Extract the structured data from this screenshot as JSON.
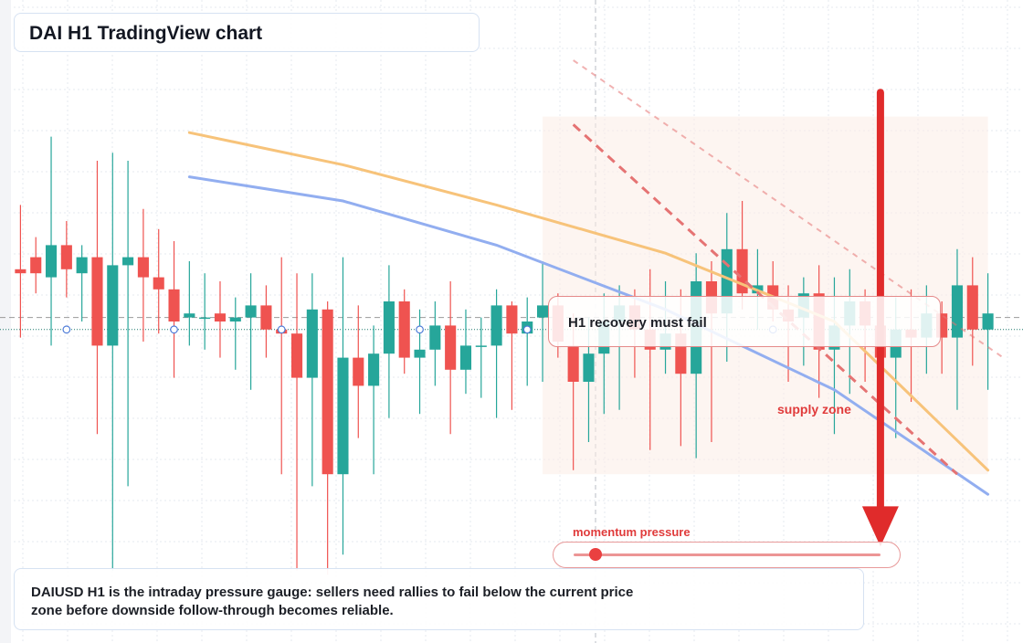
{
  "header": {
    "title": "DAI H1 TradingView chart"
  },
  "annotations": {
    "note": "H1 recovery must fail",
    "zone_label": "supply zone",
    "gauge_label": "momentum pressure",
    "gauge_value": 0.07,
    "caption": "DAIUSD H1 is the intraday pressure gauge: sellers need rallies to fail below the current price zone before downside follow-through becomes reliable."
  },
  "colors": {
    "up": "#26a69a",
    "down": "#ef5350",
    "ma_fast": "#f7c37a",
    "ma_slow": "#92aef0",
    "trendline": "#e57373",
    "arrow": "#e02b2b",
    "grid": "#e6e9ef"
  },
  "chart_data": {
    "type": "candlestick",
    "symbol": "DAIUSD",
    "timeframe": "H1",
    "ylim": [
      0.9992,
      1.0008
    ],
    "price_line": 0.99998,
    "price_line_upper": 1.00001,
    "candles": [
      {
        "o": 1.00013,
        "h": 1.00029,
        "l": 0.99996,
        "c": 1.00012
      },
      {
        "o": 1.00016,
        "h": 1.00021,
        "l": 1.00007,
        "c": 1.00012
      },
      {
        "o": 1.00011,
        "h": 1.00046,
        "l": 0.99994,
        "c": 1.00019
      },
      {
        "o": 1.00019,
        "h": 1.00025,
        "l": 1.00006,
        "c": 1.00013
      },
      {
        "o": 1.00012,
        "h": 1.00019,
        "l": 1.0,
        "c": 1.00016
      },
      {
        "o": 1.00016,
        "h": 1.0004,
        "l": 0.99972,
        "c": 0.99994
      },
      {
        "o": 0.99994,
        "h": 1.00042,
        "l": 0.99938,
        "c": 1.00014
      },
      {
        "o": 1.00014,
        "h": 1.0004,
        "l": 0.99959,
        "c": 1.00016
      },
      {
        "o": 1.00016,
        "h": 1.00028,
        "l": 0.99995,
        "c": 1.00011
      },
      {
        "o": 1.00011,
        "h": 1.00023,
        "l": 0.99997,
        "c": 1.00008
      },
      {
        "o": 1.00008,
        "h": 1.0002,
        "l": 0.99986,
        "c": 1.0
      },
      {
        "o": 1.00001,
        "h": 1.00015,
        "l": 0.99994,
        "c": 1.00002
      },
      {
        "o": 1.00001,
        "h": 1.00012,
        "l": 0.99993,
        "c": 1.00001
      },
      {
        "o": 1.00002,
        "h": 1.0001,
        "l": 0.99991,
        "c": 1.0
      },
      {
        "o": 1.0,
        "h": 1.00006,
        "l": 0.99988,
        "c": 1.00001
      },
      {
        "o": 1.00001,
        "h": 1.00012,
        "l": 0.99983,
        "c": 1.00004
      },
      {
        "o": 1.00004,
        "h": 1.00009,
        "l": 0.99991,
        "c": 0.99998
      },
      {
        "o": 0.99998,
        "h": 1.00016,
        "l": 0.99962,
        "c": 0.99997
      },
      {
        "o": 0.99997,
        "h": 1.00012,
        "l": 0.99938,
        "c": 0.99986
      },
      {
        "o": 0.99986,
        "h": 1.00012,
        "l": 0.99959,
        "c": 1.00003
      },
      {
        "o": 1.00003,
        "h": 1.00005,
        "l": 0.99937,
        "c": 0.99962
      },
      {
        "o": 0.99962,
        "h": 1.00016,
        "l": 0.99942,
        "c": 0.99991
      },
      {
        "o": 0.99991,
        "h": 1.00004,
        "l": 0.99971,
        "c": 0.99984
      },
      {
        "o": 0.99984,
        "h": 0.99999,
        "l": 0.99962,
        "c": 0.99992
      },
      {
        "o": 0.99992,
        "h": 1.00014,
        "l": 0.99976,
        "c": 1.00005
      },
      {
        "o": 1.00005,
        "h": 1.00008,
        "l": 0.99987,
        "c": 0.99991
      },
      {
        "o": 0.99991,
        "h": 1.00003,
        "l": 0.99977,
        "c": 0.99993
      },
      {
        "o": 0.99993,
        "h": 1.00005,
        "l": 0.99984,
        "c": 0.99999
      },
      {
        "o": 0.99999,
        "h": 1.0001,
        "l": 0.99972,
        "c": 0.99988
      },
      {
        "o": 0.99988,
        "h": 1.00003,
        "l": 0.99982,
        "c": 0.99994
      },
      {
        "o": 0.99994,
        "h": 1.00001,
        "l": 0.99981,
        "c": 0.99994
      },
      {
        "o": 0.99994,
        "h": 1.00008,
        "l": 0.99976,
        "c": 1.00004
      },
      {
        "o": 1.00004,
        "h": 1.00005,
        "l": 0.99978,
        "c": 0.99997
      },
      {
        "o": 0.99997,
        "h": 1.00006,
        "l": 0.99984,
        "c": 1.0
      },
      {
        "o": 1.00001,
        "h": 1.00015,
        "l": 0.99985,
        "c": 1.00004
      },
      {
        "o": 1.00004,
        "h": 1.00007,
        "l": 0.99991,
        "c": 0.99995
      },
      {
        "o": 0.99994,
        "h": 1.00002,
        "l": 0.99963,
        "c": 0.99985
      },
      {
        "o": 0.99985,
        "h": 1.00001,
        "l": 0.9997,
        "c": 0.99992
      },
      {
        "o": 0.99992,
        "h": 1.00007,
        "l": 0.99977,
        "c": 1.0
      },
      {
        "o": 1.0,
        "h": 1.00009,
        "l": 0.99978,
        "c": 1.00004
      },
      {
        "o": 1.00004,
        "h": 1.00008,
        "l": 0.99986,
        "c": 0.99998
      },
      {
        "o": 0.99998,
        "h": 1.00013,
        "l": 0.99968,
        "c": 0.99993
      },
      {
        "o": 0.99993,
        "h": 1.0001,
        "l": 0.99987,
        "c": 0.99997
      },
      {
        "o": 0.99997,
        "h": 1.00008,
        "l": 0.99969,
        "c": 0.99987
      },
      {
        "o": 0.99987,
        "h": 1.00017,
        "l": 0.99966,
        "c": 1.0001
      },
      {
        "o": 1.0001,
        "h": 1.00015,
        "l": 0.9997,
        "c": 1.00002
      },
      {
        "o": 1.00002,
        "h": 1.00027,
        "l": 0.9999,
        "c": 1.00018
      },
      {
        "o": 1.00018,
        "h": 1.0003,
        "l": 1.00003,
        "c": 1.00007
      },
      {
        "o": 1.00007,
        "h": 1.00018,
        "l": 0.99998,
        "c": 1.00009
      },
      {
        "o": 1.00009,
        "h": 1.00015,
        "l": 1.0,
        "c": 1.00003
      },
      {
        "o": 1.00003,
        "h": 1.00009,
        "l": 0.99985,
        "c": 1.0
      },
      {
        "o": 1.00001,
        "h": 1.00011,
        "l": 0.99989,
        "c": 1.00007
      },
      {
        "o": 1.00007,
        "h": 1.00014,
        "l": 0.99981,
        "c": 0.99993
      },
      {
        "o": 0.99993,
        "h": 1.00011,
        "l": 0.99972,
        "c": 0.99999
      },
      {
        "o": 0.99999,
        "h": 1.00013,
        "l": 0.99982,
        "c": 1.00005
      },
      {
        "o": 1.00005,
        "h": 1.00008,
        "l": 0.99985,
        "c": 0.99999
      },
      {
        "o": 0.99999,
        "h": 1.00011,
        "l": 0.99969,
        "c": 0.99991
      },
      {
        "o": 0.99991,
        "h": 1.00006,
        "l": 0.99971,
        "c": 0.99998
      },
      {
        "o": 0.99998,
        "h": 1.00008,
        "l": 0.9998,
        "c": 0.99996
      },
      {
        "o": 0.99996,
        "h": 1.00009,
        "l": 0.99987,
        "c": 1.00002
      },
      {
        "o": 1.00002,
        "h": 1.00005,
        "l": 0.99987,
        "c": 0.99996
      },
      {
        "o": 0.99996,
        "h": 1.00018,
        "l": 0.99978,
        "c": 1.00009
      },
      {
        "o": 1.00009,
        "h": 1.00016,
        "l": 0.99989,
        "c": 0.99998
      },
      {
        "o": 0.99998,
        "h": 1.00012,
        "l": 0.99983,
        "c": 1.00002
      }
    ],
    "ma_fast": [
      {
        "i": 11,
        "y": 1.00047
      },
      {
        "i": 21,
        "y": 1.00039
      },
      {
        "i": 31,
        "y": 1.00029
      },
      {
        "i": 42,
        "y": 1.00017
      },
      {
        "i": 53,
        "y": 1.0
      },
      {
        "i": 63,
        "y": 0.99963
      }
    ],
    "ma_slow": [
      {
        "i": 11,
        "y": 1.00036
      },
      {
        "i": 21,
        "y": 1.0003
      },
      {
        "i": 31,
        "y": 1.00019
      },
      {
        "i": 42,
        "y": 1.00003
      },
      {
        "i": 53,
        "y": 0.99983
      },
      {
        "i": 63,
        "y": 0.99957
      }
    ],
    "trend_upper": [
      {
        "i": 36,
        "y": 1.00065
      },
      {
        "i": 64,
        "y": 0.99991
      }
    ],
    "trend_lower": [
      {
        "i": 36,
        "y": 1.00049
      },
      {
        "i": 61,
        "y": 0.99962
      }
    ],
    "signal_arrow": {
      "i": 56,
      "from": 1.00057,
      "to": 0.99944
    },
    "markers": [
      3,
      10,
      17,
      26,
      33,
      49
    ],
    "supply_zone": {
      "from_i": 34,
      "to_i": 63,
      "top": 1.00051,
      "bottom": 0.99962
    }
  }
}
